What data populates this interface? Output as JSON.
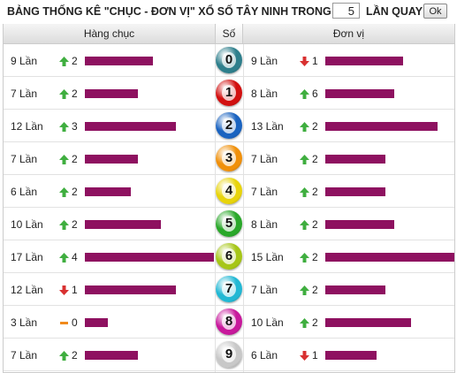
{
  "header": {
    "title": "BẢNG THỐNG KÊ \"CHỤC - ĐƠN VỊ\" XỔ SỐ TÂY NINH TRONG",
    "input_value": "5",
    "suffix": "LẦN QUAY",
    "button": "Ok"
  },
  "columns": {
    "tens": "Hàng chục",
    "digit": "Số",
    "units": "Đơn vị"
  },
  "rows": [
    {
      "digit": 0,
      "ball_color": "#2e7f8c",
      "tens": {
        "count": 9,
        "count_label": "9 Lần",
        "trend": "up",
        "change": 2
      },
      "units": {
        "count": 9,
        "count_label": "9 Lần",
        "trend": "down",
        "change": 1
      }
    },
    {
      "digit": 1,
      "ball_color": "#d21010",
      "tens": {
        "count": 7,
        "count_label": "7 Lần",
        "trend": "up",
        "change": 2
      },
      "units": {
        "count": 8,
        "count_label": "8 Lần",
        "trend": "up",
        "change": 6
      }
    },
    {
      "digit": 2,
      "ball_color": "#1a63c0",
      "tens": {
        "count": 12,
        "count_label": "12 Lần",
        "trend": "up",
        "change": 3
      },
      "units": {
        "count": 13,
        "count_label": "13 Lần",
        "trend": "up",
        "change": 2
      }
    },
    {
      "digit": 3,
      "ball_color": "#f0900a",
      "tens": {
        "count": 7,
        "count_label": "7 Lần",
        "trend": "up",
        "change": 2
      },
      "units": {
        "count": 7,
        "count_label": "7 Lần",
        "trend": "up",
        "change": 2
      }
    },
    {
      "digit": 4,
      "ball_color": "#e8d40c",
      "tens": {
        "count": 6,
        "count_label": "6 Lần",
        "trend": "up",
        "change": 2
      },
      "units": {
        "count": 7,
        "count_label": "7 Lần",
        "trend": "up",
        "change": 2
      }
    },
    {
      "digit": 5,
      "ball_color": "#2aa82a",
      "tens": {
        "count": 10,
        "count_label": "10 Lần",
        "trend": "up",
        "change": 2
      },
      "units": {
        "count": 8,
        "count_label": "8 Lần",
        "trend": "up",
        "change": 2
      }
    },
    {
      "digit": 6,
      "ball_color": "#a6c617",
      "tens": {
        "count": 17,
        "count_label": "17 Lần",
        "trend": "up",
        "change": 4
      },
      "units": {
        "count": 15,
        "count_label": "15 Lần",
        "trend": "up",
        "change": 2
      }
    },
    {
      "digit": 7,
      "ball_color": "#22b8d4",
      "tens": {
        "count": 12,
        "count_label": "12 Lần",
        "trend": "down",
        "change": 1
      },
      "units": {
        "count": 7,
        "count_label": "7 Lần",
        "trend": "up",
        "change": 2
      }
    },
    {
      "digit": 8,
      "ball_color": "#c8199c",
      "tens": {
        "count": 3,
        "count_label": "3 Lần",
        "trend": "flat",
        "change": 0
      },
      "units": {
        "count": 10,
        "count_label": "10 Lần",
        "trend": "up",
        "change": 2
      }
    },
    {
      "digit": 9,
      "ball_color": "#c8c8c8",
      "tens": {
        "count": 7,
        "count_label": "7 Lần",
        "trend": "up",
        "change": 2
      },
      "units": {
        "count": 6,
        "count_label": "6 Lần",
        "trend": "down",
        "change": 1
      }
    }
  ]
}
